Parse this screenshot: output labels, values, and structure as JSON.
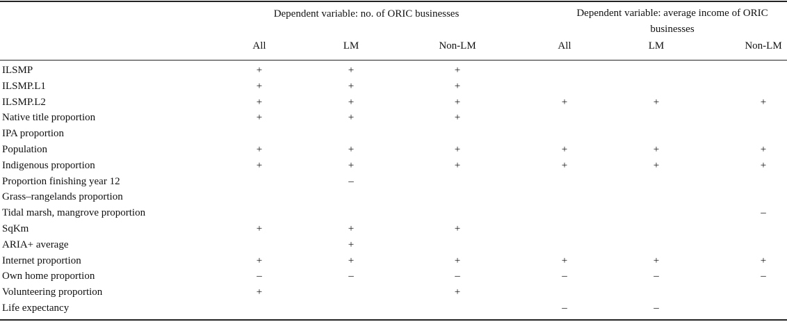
{
  "table": {
    "group_headers": [
      "Dependent variable: no. of ORIC businesses",
      "Dependent variable: average income of ORIC businesses"
    ],
    "sub_headers": [
      "All",
      "LM",
      "Non-LM",
      "All",
      "LM",
      "Non-LM"
    ],
    "rows": [
      {
        "label": "ILSMP",
        "cells": [
          "+",
          "+",
          "+",
          null,
          null,
          null
        ]
      },
      {
        "label": "ILSMP.L1",
        "cells": [
          "+",
          "+",
          "+",
          null,
          null,
          null
        ]
      },
      {
        "label": "ILSMP.L2",
        "cells": [
          "+",
          "+",
          "+",
          "+",
          "+",
          "+"
        ]
      },
      {
        "label": "Native title proportion",
        "cells": [
          "+",
          "+",
          "+",
          null,
          null,
          null
        ]
      },
      {
        "label": "IPA proportion",
        "cells": [
          null,
          null,
          null,
          null,
          null,
          null
        ]
      },
      {
        "label": "Population",
        "cells": [
          "+",
          "+",
          "+",
          "+",
          "+",
          "+"
        ]
      },
      {
        "label": "Indigenous proportion",
        "cells": [
          "+",
          "+",
          "+",
          "+",
          "+",
          "+"
        ]
      },
      {
        "label": "Proportion finishing year 12",
        "cells": [
          null,
          "–",
          null,
          null,
          null,
          null
        ]
      },
      {
        "label": "Grass–rangelands proportion",
        "cells": [
          null,
          null,
          null,
          null,
          null,
          null
        ]
      },
      {
        "label": "Tidal marsh, mangrove proportion",
        "cells": [
          null,
          null,
          null,
          null,
          null,
          "–"
        ]
      },
      {
        "label": "SqKm",
        "cells": [
          "+",
          "+",
          "+",
          null,
          null,
          null
        ]
      },
      {
        "label": "ARIA+ average",
        "cells": [
          null,
          "+",
          null,
          null,
          null,
          null
        ]
      },
      {
        "label": "Internet proportion",
        "cells": [
          "+",
          "+",
          "+",
          "+",
          "+",
          "+"
        ]
      },
      {
        "label": "Own home proportion",
        "cells": [
          "–",
          "–",
          "–",
          "–",
          "–",
          "–"
        ]
      },
      {
        "label": "Volunteering proportion",
        "cells": [
          "+",
          null,
          "+",
          null,
          null,
          null
        ]
      },
      {
        "label": "Life expectancy",
        "cells": [
          null,
          null,
          null,
          "–",
          "–",
          null
        ]
      }
    ]
  }
}
